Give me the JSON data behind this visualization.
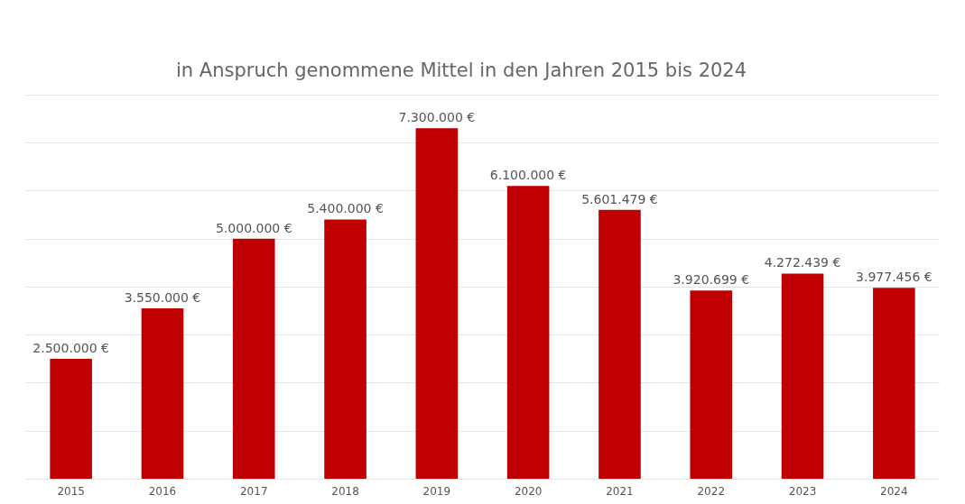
{
  "chart_data": {
    "type": "bar",
    "title": "in Anspruch genommene Mittel in den Jahren 2015 bis 2024",
    "categories": [
      "2015",
      "2016",
      "2017",
      "2018",
      "2019",
      "2020",
      "2021",
      "2022",
      "2023",
      "2024"
    ],
    "values": [
      2500000,
      3550000,
      5000000,
      5400000,
      7300000,
      6100000,
      5601479,
      3920699,
      4272439,
      3977456
    ],
    "value_labels": [
      "2.500.000 €",
      "3.550.000 €",
      "5.000.000 €",
      "5.400.000 €",
      "7.300.000 €",
      "6.100.000 €",
      "5.601.479 €",
      "3.920.699 €",
      "4.272.439 €",
      "3.977.456 €"
    ],
    "color": "#c00000",
    "ylim": [
      0,
      8000000
    ],
    "yticks": [
      {
        "value": 0,
        "label": null
      },
      {
        "value": 1000000,
        "label": null
      },
      {
        "value": 2000000,
        "label": null
      },
      {
        "value": 3000000,
        "label": null
      },
      {
        "value": 4000000,
        "label": null
      },
      {
        "value": 5000000,
        "label": null
      },
      {
        "value": 6000000,
        "label": null
      },
      {
        "value": 7000000,
        "label": null
      },
      {
        "value": 8000000,
        "label": null
      }
    ],
    "grid": "y",
    "tick_labels": "x"
  }
}
